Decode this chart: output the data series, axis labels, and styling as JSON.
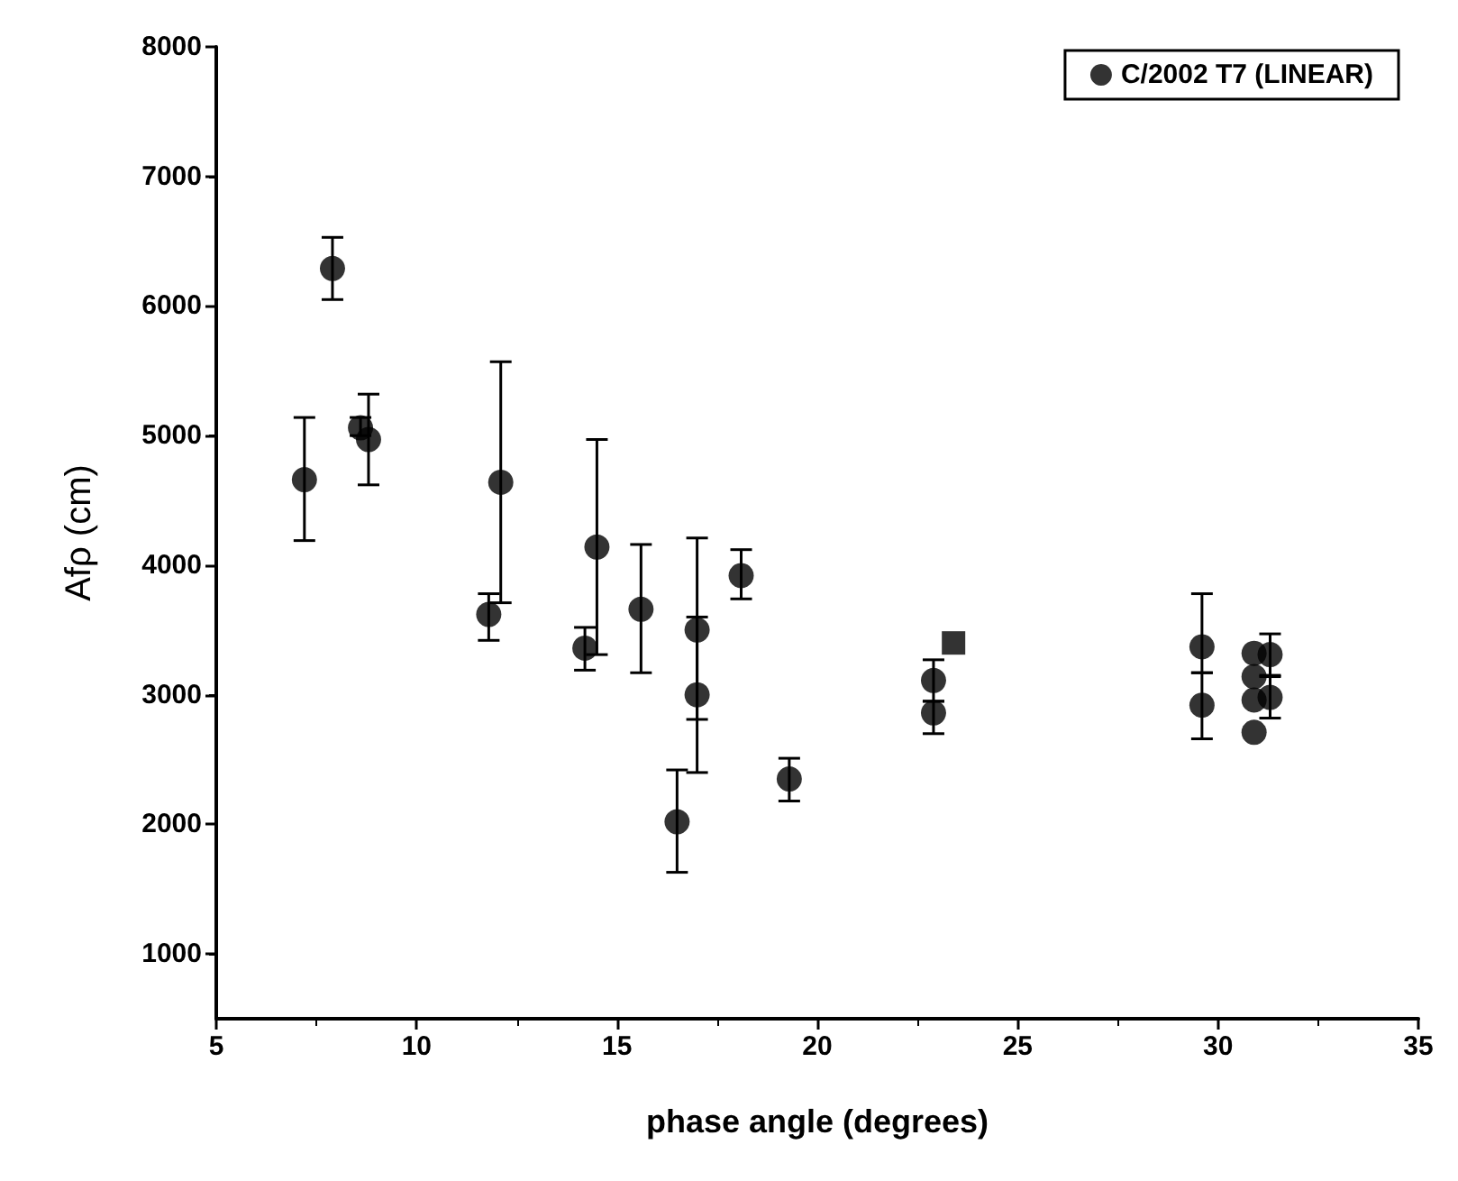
{
  "chart_data": {
    "type": "scatter",
    "xlabel": "phase angle (degrees)",
    "ylabel": "Afρ (cm)",
    "xlim": [
      5,
      35
    ],
    "xticks": [
      5,
      10,
      15,
      20,
      25,
      30,
      35
    ],
    "ylim": [
      500,
      8000
    ],
    "yticks": [
      1000,
      2000,
      3000,
      4000,
      5000,
      6000,
      7000,
      8000
    ],
    "grid": false,
    "legend": "top right",
    "marker": "circle",
    "series": [
      {
        "name": "C/2002 T7 (LINEAR)",
        "color": "#000000",
        "x": [
          7.2,
          7.9,
          8.6,
          8.8,
          12.1,
          11.8,
          14.5,
          14.2,
          15.6,
          18.1,
          17.0,
          17.0,
          16.5,
          19.3,
          22.9,
          22.9,
          29.6,
          29.6,
          30.9,
          30.9,
          30.9,
          30.9,
          31.3,
          31.3
        ],
        "values": [
          4660,
          6290,
          5060,
          4970,
          4640,
          3620,
          4140,
          3360,
          3660,
          3920,
          3500,
          3000,
          2020,
          2350,
          3110,
          2860,
          3370,
          2920,
          3320,
          3140,
          2960,
          2710,
          3310,
          2980
        ],
        "errors": [
          [
            4190,
            5140
          ],
          [
            6050,
            6530
          ],
          [
            5000,
            5140
          ],
          [
            4620,
            5320
          ],
          [
            3710,
            5570
          ],
          [
            3420,
            3780
          ],
          [
            3310,
            4970
          ],
          [
            3190,
            3520
          ],
          [
            3170,
            4160
          ],
          [
            3740,
            4120
          ],
          [
            2810,
            4210
          ],
          [
            2400,
            3600
          ],
          [
            1630,
            2420
          ],
          [
            2180,
            2510
          ],
          [
            2950,
            3270
          ],
          [
            2700,
            2950
          ],
          [
            3170,
            3780
          ],
          [
            2660,
            3170
          ],
          null,
          null,
          null,
          null,
          [
            3150,
            3470
          ],
          [
            2820,
            3140
          ]
        ]
      },
      {
        "color": "#000000",
        "marker": "square",
        "x": [
          23.4
        ],
        "values": [
          3400
        ]
      }
    ]
  }
}
